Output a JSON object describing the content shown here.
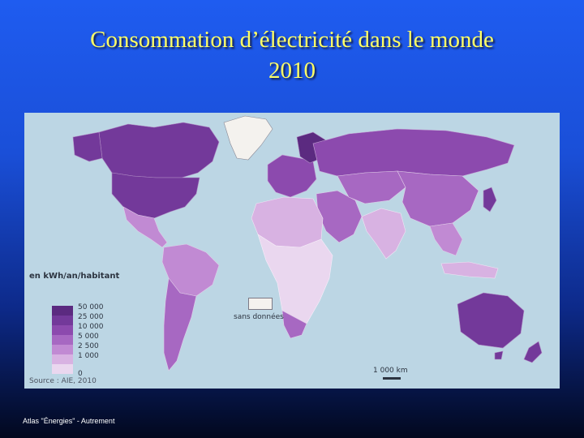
{
  "title": {
    "line1": "Consommation d’électricité dans le monde",
    "line2": "2010"
  },
  "legend": {
    "title": "en kWh/an/habitant",
    "classes": [
      {
        "label": "50 000",
        "color": "#5b2a80"
      },
      {
        "label": "25 000",
        "color": "#73399a"
      },
      {
        "label": "10 000",
        "color": "#8c4aae"
      },
      {
        "label": "5 000",
        "color": "#a768c2"
      },
      {
        "label": "2 500",
        "color": "#c18ad3"
      },
      {
        "label": "1 000",
        "color": "#d8b2e2"
      },
      {
        "label": "0",
        "color": "#ead7ef"
      }
    ],
    "no_data_label": "sans données",
    "no_data_color": "#f4f2ee"
  },
  "source": "Source : AIE, 2010",
  "scale": "1 000 km",
  "credit": "Atlas \"Énergies\" - Autrement",
  "colors": {
    "ocean": "#bcd6e4",
    "title": "#ffff66"
  }
}
